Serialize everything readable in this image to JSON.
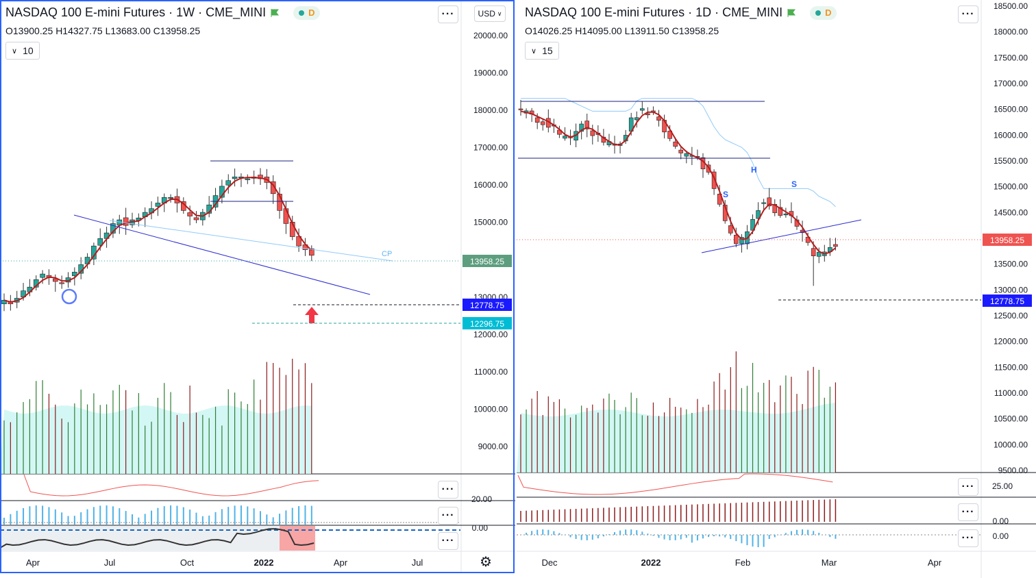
{
  "left_chart": {
    "title": "NASDAQ 100 E-mini Futures · 1W · CME_MINI",
    "badge": "D",
    "ohlc": {
      "o": "O13900.25",
      "h": "H14327.75",
      "l": "L13683.00",
      "c": "C13958.25"
    },
    "ma_length": "10",
    "currency": "USD",
    "price_label": "13958.25",
    "line_label_1": "12778.75",
    "line_label_2": "12296.75",
    "cp_label": "CP",
    "osc_label_1": "20.00",
    "osc_label_2": "0.00",
    "axis_ticks": [
      "20000.00",
      "19000.00",
      "18000.00",
      "17000.00",
      "16000.00",
      "15000.00",
      "14000.00",
      "13000.00",
      "12000.00",
      "11000.00",
      "10000.00",
      "9000.00"
    ],
    "x_ticks": [
      "Apr",
      "Jul",
      "Oct",
      "2022",
      "Apr",
      "Jul"
    ]
  },
  "right_chart": {
    "title": "NASDAQ 100 E-mini Futures · 1D · CME_MINI",
    "badge": "D",
    "ohlc": {
      "o": "O14026.25",
      "h": "H14095.00",
      "l": "L13911.50",
      "c": "C13958.25"
    },
    "ma_length": "15",
    "price_label": "13958.25",
    "line_label": "12778.75",
    "pattern_labels": [
      "S",
      "H",
      "S"
    ],
    "osc_label_1": "25.00",
    "osc_label_2": "0.00",
    "osc_label_3": "0.00",
    "axis_ticks": [
      "18500.00",
      "18000.00",
      "17500.00",
      "17000.00",
      "16500.00",
      "16000.00",
      "15500.00",
      "15000.00",
      "14500.00",
      "14000.00",
      "13500.00",
      "13000.00",
      "12500.00",
      "12000.00",
      "11500.00",
      "11000.00",
      "10500.00",
      "10000.00",
      "9500.00"
    ],
    "x_ticks": [
      "Dec",
      "2022",
      "Feb",
      "Mar",
      "Apr"
    ]
  },
  "colors": {
    "up": "#26a69a",
    "down": "#ef5350",
    "ma": "#b71c1c",
    "trend": "#2a2ad0",
    "band": "#90caf9",
    "price_bg_left": "#5d9e7e",
    "price_bg_right": "#ef5350",
    "line_label_bg": "#1a1aff",
    "line_label2_bg": "#00bcd4"
  },
  "chart_data": [
    {
      "type": "line",
      "title": "NASDAQ 100 E-mini Futures · 1W · CME_MINI",
      "timeframe": "1W",
      "xlabel": "",
      "ylabel": "",
      "x_ticks": [
        "Apr",
        "Jul",
        "Oct",
        "2022",
        "Apr",
        "Jul"
      ],
      "ylim": [
        8500,
        20500
      ],
      "last_close": 13958.25,
      "horizontal_levels": [
        12778.75,
        12296.75
      ],
      "series": [
        {
          "values": [
            12900,
            12800,
            12950,
            13150,
            13250,
            13450,
            13600,
            13500,
            13400,
            13350,
            13500,
            13650,
            13850,
            14050,
            14350,
            14550,
            14700,
            14950,
            15050,
            14900,
            15050,
            15100,
            15250,
            15350,
            15500,
            15650,
            15650,
            15500,
            15300,
            15150,
            15050,
            15250,
            15450,
            15700,
            15950,
            16100,
            16200,
            16200,
            16150,
            16200,
            16150,
            16050,
            15750,
            15300,
            14950,
            14600,
            14350,
            14250,
            14100
          ]
        }
      ]
    },
    {
      "type": "line",
      "title": "NASDAQ 100 E-mini Futures · 1D · CME_MINI",
      "timeframe": "1D",
      "xlabel": "",
      "ylabel": "",
      "x_ticks": [
        "Dec",
        "2022",
        "Feb",
        "Mar",
        "Apr"
      ],
      "ylim": [
        9400,
        18600
      ],
      "last_close": 13958.25,
      "horizontal_levels": [
        12778.75
      ],
      "pattern_labels": [
        "S",
        "H",
        "S"
      ],
      "series": [
        {
          "values": [
            16450,
            16400,
            16350,
            16300,
            16250,
            16200,
            16100,
            16000,
            15900,
            15950,
            16100,
            16200,
            16100,
            16000,
            15950,
            15850,
            15800,
            15750,
            15850,
            16050,
            16250,
            16400,
            16450,
            16450,
            16400,
            16300,
            16100,
            15900,
            15750,
            15650,
            15600,
            15550,
            15500,
            15400,
            15200,
            14900,
            14600,
            14300,
            14050,
            13900,
            13950,
            14100,
            14300,
            14600,
            14700,
            14650,
            14550,
            14500,
            14450,
            14350,
            14200,
            14050,
            13850,
            13700,
            13650,
            13700,
            13800,
            13900
          ]
        }
      ]
    }
  ]
}
